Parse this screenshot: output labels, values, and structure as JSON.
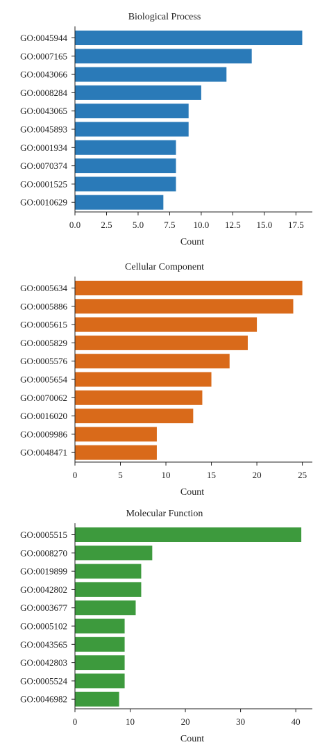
{
  "chart_data": [
    {
      "type": "bar",
      "orientation": "horizontal",
      "title": "Biological Process",
      "xlabel": "Count",
      "color": "#2a7ab8",
      "categories": [
        "GO:0045944",
        "GO:0007165",
        "GO:0043066",
        "GO:0008284",
        "GO:0043065",
        "GO:0045893",
        "GO:0001934",
        "GO:0070374",
        "GO:0001525",
        "GO:0010629"
      ],
      "values": [
        18,
        14,
        12,
        10,
        9,
        9,
        8,
        8,
        8,
        7
      ],
      "xlim": [
        0,
        18.8
      ],
      "xticks": [
        0,
        2.5,
        5,
        7.5,
        10,
        12.5,
        15,
        17.5
      ],
      "xtick_labels": [
        "0.0",
        "2.5",
        "5.0",
        "7.5",
        "10.0",
        "12.5",
        "15.0",
        "17.5"
      ]
    },
    {
      "type": "bar",
      "orientation": "horizontal",
      "title": "Cellular Component",
      "xlabel": "Count",
      "color": "#d96a1a",
      "categories": [
        "GO:0005634",
        "GO:0005886",
        "GO:0005615",
        "GO:0005829",
        "GO:0005576",
        "GO:0005654",
        "GO:0070062",
        "GO:0016020",
        "GO:0009986",
        "GO:0048471"
      ],
      "values": [
        25,
        24,
        20,
        19,
        17,
        15,
        14,
        13,
        9,
        9
      ],
      "xlim": [
        0,
        26.1
      ],
      "xticks": [
        0,
        5,
        10,
        15,
        20,
        25
      ],
      "xtick_labels": [
        "0",
        "5",
        "10",
        "15",
        "20",
        "25"
      ]
    },
    {
      "type": "bar",
      "orientation": "horizontal",
      "title": "Molecular Function",
      "xlabel": "Count",
      "color": "#3d9a3d",
      "categories": [
        "GO:0005515",
        "GO:0008270",
        "GO:0019899",
        "GO:0042802",
        "GO:0003677",
        "GO:0005102",
        "GO:0043565",
        "GO:0042803",
        "GO:0005524",
        "GO:0046982"
      ],
      "values": [
        41,
        14,
        12,
        12,
        11,
        9,
        9,
        9,
        9,
        8
      ],
      "xlim": [
        0,
        43
      ],
      "xticks": [
        0,
        10,
        20,
        30,
        40
      ],
      "xtick_labels": [
        "0",
        "10",
        "20",
        "30",
        "40"
      ]
    }
  ]
}
